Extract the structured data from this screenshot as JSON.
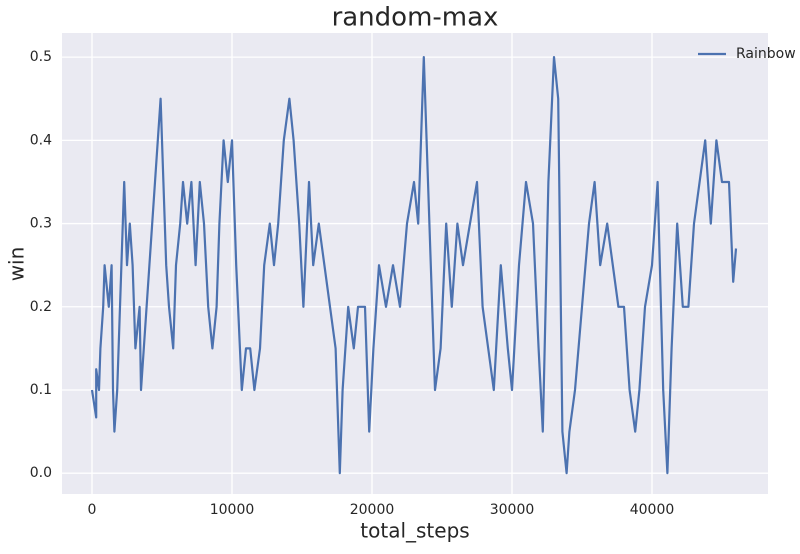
{
  "chart_data": {
    "type": "line",
    "title": "random-max",
    "xlabel": "total_steps",
    "ylabel": "win",
    "x": [
      0,
      300,
      300,
      500,
      600,
      800,
      900,
      1200,
      1400,
      1500,
      1600,
      1800,
      1900,
      2100,
      2300,
      2500,
      2700,
      2900,
      3100,
      3400,
      3500,
      3700,
      3900,
      4100,
      4300,
      4500,
      4700,
      4900,
      5100,
      5300,
      5500,
      5800,
      6000,
      6300,
      6500,
      6800,
      7100,
      7400,
      7700,
      8000,
      8300,
      8600,
      8900,
      9100,
      9400,
      9700,
      10000,
      10300,
      10700,
      11000,
      11300,
      11600,
      12000,
      12300,
      12700,
      13000,
      13300,
      13700,
      14100,
      14400,
      14800,
      15100,
      15500,
      15800,
      16200,
      16600,
      17000,
      17400,
      17700,
      17900,
      18300,
      18700,
      19000,
      19500,
      19800,
      20100,
      20500,
      21000,
      21500,
      22000,
      22500,
      23000,
      23300,
      23700,
      24000,
      24500,
      24900,
      25300,
      25700,
      26100,
      26500,
      27000,
      27500,
      27900,
      28300,
      28700,
      29200,
      29700,
      30000,
      30500,
      31000,
      31500,
      31900,
      32200,
      32600,
      33000,
      33300,
      33600,
      33900,
      34100,
      34500,
      35000,
      35500,
      35900,
      36300,
      36800,
      37200,
      37600,
      38000,
      38400,
      38800,
      39100,
      39500,
      40000,
      40400,
      40800,
      41100,
      41400,
      41800,
      42200,
      42600,
      43000,
      43400,
      43800,
      44200,
      44600,
      45000,
      45500,
      45800,
      46000
    ],
    "series": [
      {
        "name": "Rainbow",
        "color": "#4c72b0",
        "values": [
          0.1,
          0.067,
          0.125,
          0.1,
          0.15,
          0.2,
          0.25,
          0.2,
          0.25,
          0.1,
          0.05,
          0.1,
          0.15,
          0.25,
          0.35,
          0.25,
          0.3,
          0.25,
          0.15,
          0.2,
          0.1,
          0.15,
          0.2,
          0.25,
          0.3,
          0.35,
          0.4,
          0.45,
          0.35,
          0.25,
          0.2,
          0.15,
          0.25,
          0.3,
          0.35,
          0.3,
          0.35,
          0.25,
          0.35,
          0.3,
          0.2,
          0.15,
          0.2,
          0.3,
          0.4,
          0.35,
          0.4,
          0.25,
          0.1,
          0.15,
          0.15,
          0.1,
          0.15,
          0.25,
          0.3,
          0.25,
          0.3,
          0.4,
          0.45,
          0.4,
          0.3,
          0.2,
          0.35,
          0.25,
          0.3,
          0.25,
          0.2,
          0.15,
          0.0,
          0.1,
          0.2,
          0.15,
          0.2,
          0.2,
          0.05,
          0.15,
          0.25,
          0.2,
          0.25,
          0.2,
          0.3,
          0.35,
          0.3,
          0.5,
          0.35,
          0.1,
          0.15,
          0.3,
          0.2,
          0.3,
          0.25,
          0.3,
          0.35,
          0.2,
          0.15,
          0.1,
          0.25,
          0.15,
          0.1,
          0.25,
          0.35,
          0.3,
          0.15,
          0.05,
          0.35,
          0.5,
          0.45,
          0.05,
          0.0,
          0.05,
          0.1,
          0.2,
          0.3,
          0.35,
          0.25,
          0.3,
          0.25,
          0.2,
          0.2,
          0.1,
          0.05,
          0.1,
          0.2,
          0.25,
          0.35,
          0.1,
          0.0,
          0.15,
          0.3,
          0.2,
          0.2,
          0.3,
          0.35,
          0.4,
          0.3,
          0.4,
          0.35,
          0.35,
          0.23,
          0.27
        ]
      }
    ],
    "xlim": [
      -2143,
      48286
    ],
    "xticks": [
      0,
      10000,
      20000,
      30000,
      40000
    ],
    "ylim": [
      -0.025,
      0.529
    ],
    "yticks": [
      {
        "value": 0,
        "label": "0.0"
      },
      0.1,
      0.2,
      0.3,
      0.4,
      0.5
    ],
    "grid": true,
    "legend": "upper right"
  }
}
